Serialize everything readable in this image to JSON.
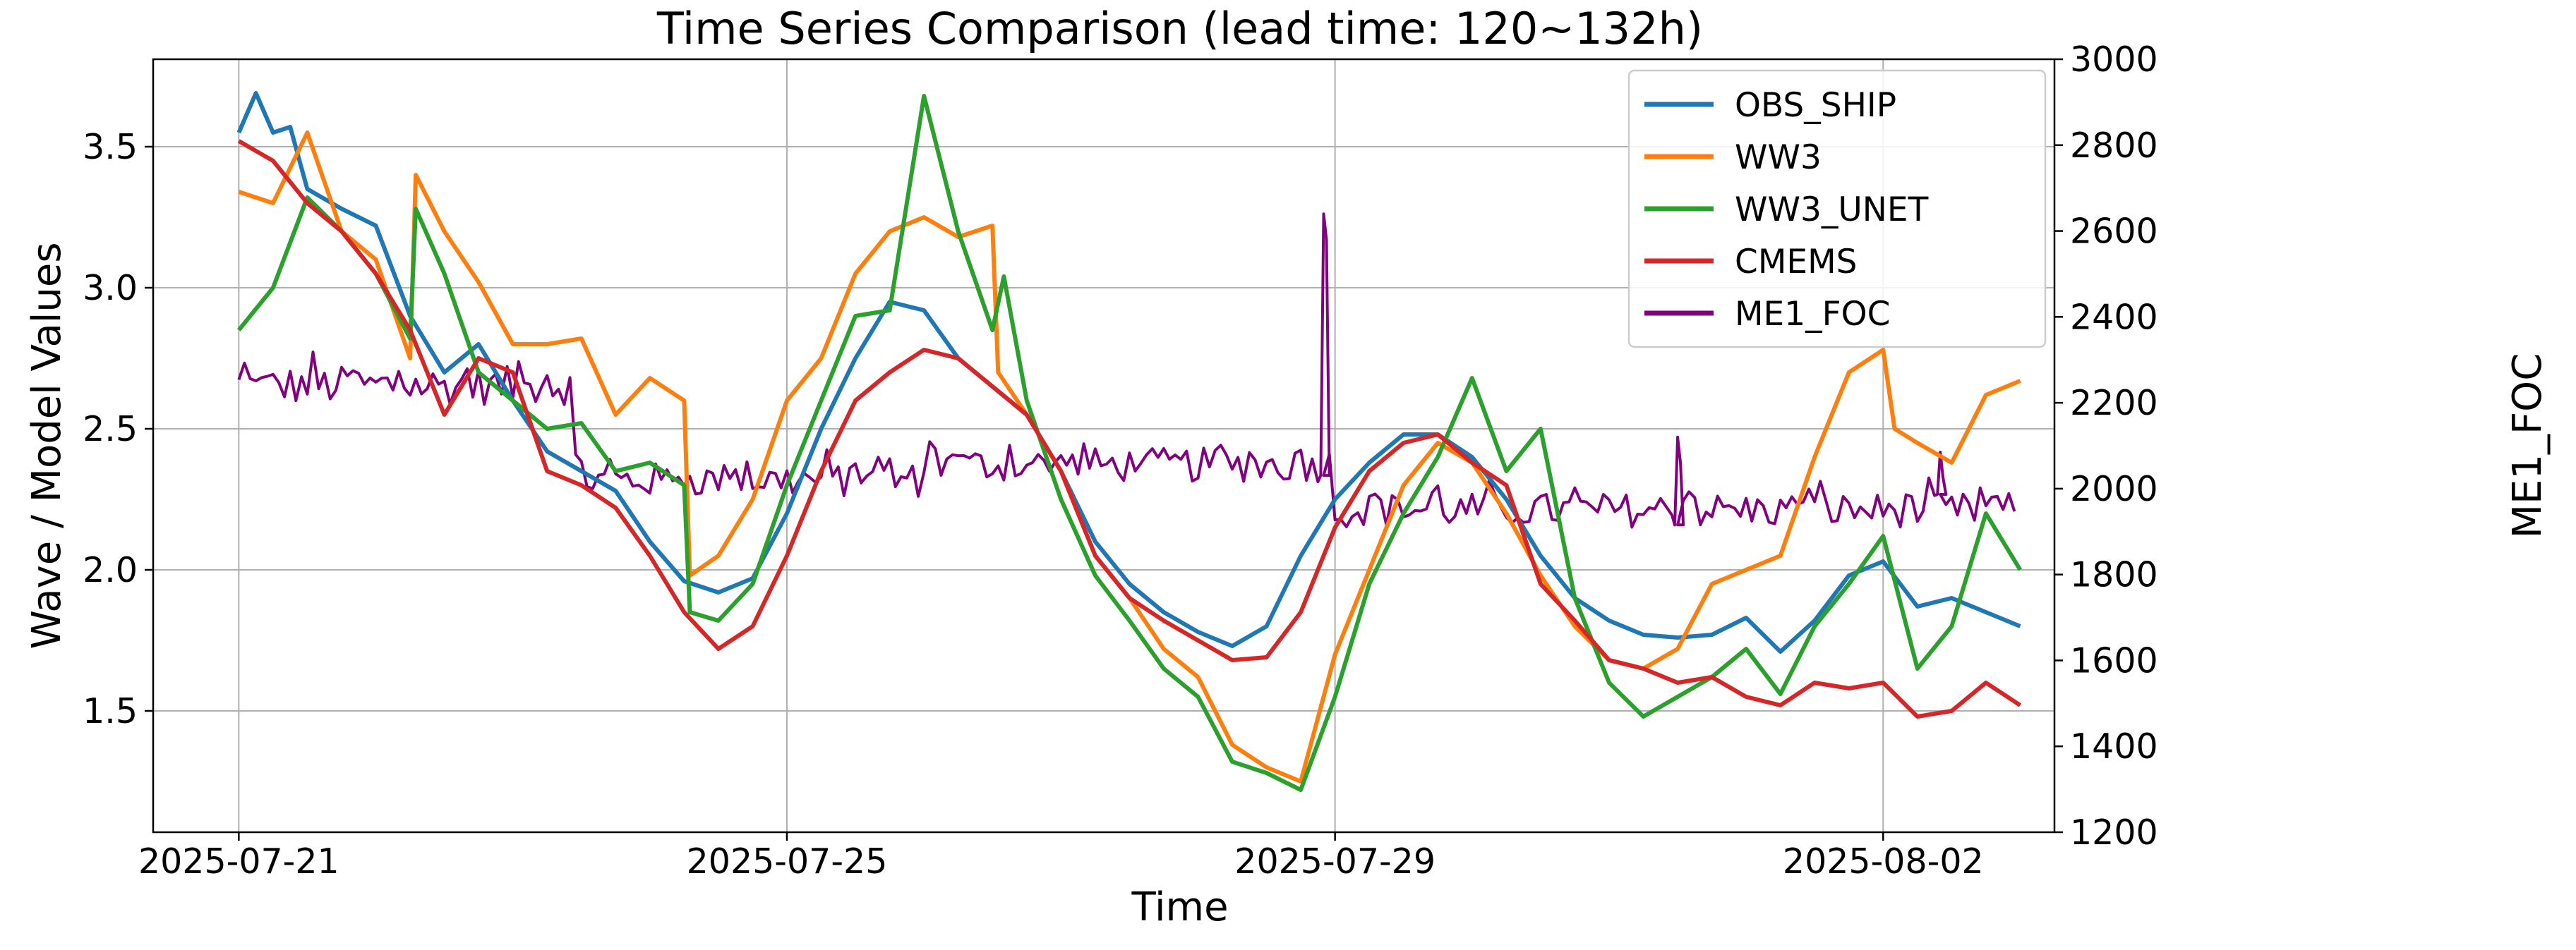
{
  "chart_data": {
    "type": "line",
    "title": "Time Series Comparison (lead time: 120~132h)",
    "xlabel": "Time",
    "ylabel": "Wave / Model Values",
    "ylabel_right": "ME1_FOC",
    "x_tick_labels": [
      "2025-07-21",
      "2025-07-25",
      "2025-07-29",
      "2025-08-02"
    ],
    "y_tick_labels": [
      "1.5",
      "2.0",
      "2.5",
      "3.0",
      "3.5"
    ],
    "y_right_tick_labels": [
      "1200",
      "1400",
      "1600",
      "1800",
      "2000",
      "2200",
      "2400",
      "2600",
      "2800",
      "3000"
    ],
    "x_range": [
      "2025-07-20T09:00",
      "2025-08-03T06:00"
    ],
    "ylim": [
      1.07,
      3.81
    ],
    "ylim_right": [
      1200,
      3000
    ],
    "grid": true,
    "legend_position": "top-right",
    "series": [
      {
        "name": "OBS_SHIP",
        "axis": "left",
        "color": "#1f77b4",
        "points": [
          [
            "2025-07-21T00:00",
            3.55
          ],
          [
            "2025-07-21T03:00",
            3.69
          ],
          [
            "2025-07-21T06:00",
            3.55
          ],
          [
            "2025-07-21T09:00",
            3.57
          ],
          [
            "2025-07-21T12:00",
            3.35
          ],
          [
            "2025-07-21T18:00",
            3.28
          ],
          [
            "2025-07-22T00:00",
            3.22
          ],
          [
            "2025-07-22T06:00",
            2.9
          ],
          [
            "2025-07-22T12:00",
            2.7
          ],
          [
            "2025-07-22T18:00",
            2.8
          ],
          [
            "2025-07-23T00:00",
            2.6
          ],
          [
            "2025-07-23T06:00",
            2.42
          ],
          [
            "2025-07-23T12:00",
            2.35
          ],
          [
            "2025-07-23T18:00",
            2.28
          ],
          [
            "2025-07-24T00:00",
            2.1
          ],
          [
            "2025-07-24T06:00",
            1.96
          ],
          [
            "2025-07-24T12:00",
            1.92
          ],
          [
            "2025-07-24T18:00",
            1.97
          ],
          [
            "2025-07-25T00:00",
            2.2
          ],
          [
            "2025-07-25T06:00",
            2.5
          ],
          [
            "2025-07-25T12:00",
            2.75
          ],
          [
            "2025-07-25T18:00",
            2.95
          ],
          [
            "2025-07-26T00:00",
            2.92
          ],
          [
            "2025-07-26T06:00",
            2.75
          ],
          [
            "2025-07-26T12:00",
            2.65
          ],
          [
            "2025-07-26T18:00",
            2.55
          ],
          [
            "2025-07-27T00:00",
            2.35
          ],
          [
            "2025-07-27T06:00",
            2.1
          ],
          [
            "2025-07-27T12:00",
            1.95
          ],
          [
            "2025-07-27T18:00",
            1.85
          ],
          [
            "2025-07-28T00:00",
            1.78
          ],
          [
            "2025-07-28T06:00",
            1.73
          ],
          [
            "2025-07-28T12:00",
            1.8
          ],
          [
            "2025-07-28T18:00",
            2.05
          ],
          [
            "2025-07-29T00:00",
            2.25
          ],
          [
            "2025-07-29T06:00",
            2.38
          ],
          [
            "2025-07-29T12:00",
            2.48
          ],
          [
            "2025-07-29T18:00",
            2.48
          ],
          [
            "2025-07-30T00:00",
            2.4
          ],
          [
            "2025-07-30T06:00",
            2.25
          ],
          [
            "2025-07-30T12:00",
            2.05
          ],
          [
            "2025-07-30T18:00",
            1.9
          ],
          [
            "2025-07-31T00:00",
            1.82
          ],
          [
            "2025-07-31T06:00",
            1.77
          ],
          [
            "2025-07-31T12:00",
            1.76
          ],
          [
            "2025-07-31T18:00",
            1.77
          ],
          [
            "2025-08-01T00:00",
            1.83
          ],
          [
            "2025-08-01T06:00",
            1.71
          ],
          [
            "2025-08-01T12:00",
            1.82
          ],
          [
            "2025-08-01T18:00",
            1.98
          ],
          [
            "2025-08-02T00:00",
            2.03
          ],
          [
            "2025-08-02T06:00",
            1.87
          ],
          [
            "2025-08-02T12:00",
            1.9
          ],
          [
            "2025-08-02T18:00",
            1.85
          ],
          [
            "2025-08-03T00:00",
            1.8
          ]
        ]
      },
      {
        "name": "WW3",
        "axis": "left",
        "color": "#ff7f0e",
        "points": [
          [
            "2025-07-21T00:00",
            3.34
          ],
          [
            "2025-07-21T06:00",
            3.3
          ],
          [
            "2025-07-21T12:00",
            3.55
          ],
          [
            "2025-07-21T18:00",
            3.2
          ],
          [
            "2025-07-22T00:00",
            3.1
          ],
          [
            "2025-07-22T06:00",
            2.75
          ],
          [
            "2025-07-22T07:00",
            3.4
          ],
          [
            "2025-07-22T12:00",
            3.2
          ],
          [
            "2025-07-22T18:00",
            3.02
          ],
          [
            "2025-07-23T00:00",
            2.8
          ],
          [
            "2025-07-23T06:00",
            2.8
          ],
          [
            "2025-07-23T12:00",
            2.82
          ],
          [
            "2025-07-23T18:00",
            2.55
          ],
          [
            "2025-07-24T00:00",
            2.68
          ],
          [
            "2025-07-24T06:00",
            2.6
          ],
          [
            "2025-07-24T07:00",
            1.98
          ],
          [
            "2025-07-24T12:00",
            2.05
          ],
          [
            "2025-07-24T18:00",
            2.25
          ],
          [
            "2025-07-25T00:00",
            2.6
          ],
          [
            "2025-07-25T06:00",
            2.75
          ],
          [
            "2025-07-25T12:00",
            3.05
          ],
          [
            "2025-07-25T18:00",
            3.2
          ],
          [
            "2025-07-26T00:00",
            3.25
          ],
          [
            "2025-07-26T06:00",
            3.18
          ],
          [
            "2025-07-26T12:00",
            3.22
          ],
          [
            "2025-07-26T13:00",
            2.7
          ],
          [
            "2025-07-26T18:00",
            2.55
          ],
          [
            "2025-07-27T00:00",
            2.35
          ],
          [
            "2025-07-27T06:00",
            2.05
          ],
          [
            "2025-07-27T12:00",
            1.9
          ],
          [
            "2025-07-27T18:00",
            1.72
          ],
          [
            "2025-07-28T00:00",
            1.62
          ],
          [
            "2025-07-28T06:00",
            1.38
          ],
          [
            "2025-07-28T12:00",
            1.3
          ],
          [
            "2025-07-28T18:00",
            1.25
          ],
          [
            "2025-07-29T00:00",
            1.7
          ],
          [
            "2025-07-29T06:00",
            2.0
          ],
          [
            "2025-07-29T12:00",
            2.3
          ],
          [
            "2025-07-29T18:00",
            2.45
          ],
          [
            "2025-07-30T00:00",
            2.38
          ],
          [
            "2025-07-30T06:00",
            2.2
          ],
          [
            "2025-07-30T12:00",
            1.98
          ],
          [
            "2025-07-30T18:00",
            1.8
          ],
          [
            "2025-07-31T00:00",
            1.68
          ],
          [
            "2025-07-31T06:00",
            1.65
          ],
          [
            "2025-07-31T12:00",
            1.72
          ],
          [
            "2025-07-31T18:00",
            1.95
          ],
          [
            "2025-08-01T00:00",
            2.0
          ],
          [
            "2025-08-01T06:00",
            2.05
          ],
          [
            "2025-08-01T12:00",
            2.4
          ],
          [
            "2025-08-01T18:00",
            2.7
          ],
          [
            "2025-08-02T00:00",
            2.78
          ],
          [
            "2025-08-02T02:00",
            2.5
          ],
          [
            "2025-08-02T06:00",
            2.45
          ],
          [
            "2025-08-02T12:00",
            2.38
          ],
          [
            "2025-08-02T18:00",
            2.62
          ],
          [
            "2025-08-03T00:00",
            2.67
          ]
        ]
      },
      {
        "name": "WW3_UNET",
        "axis": "left",
        "color": "#2ca02c",
        "points": [
          [
            "2025-07-21T00:00",
            2.85
          ],
          [
            "2025-07-21T06:00",
            3.0
          ],
          [
            "2025-07-21T12:00",
            3.32
          ],
          [
            "2025-07-21T18:00",
            3.2
          ],
          [
            "2025-07-22T00:00",
            3.05
          ],
          [
            "2025-07-22T06:00",
            2.82
          ],
          [
            "2025-07-22T07:00",
            3.28
          ],
          [
            "2025-07-22T12:00",
            3.05
          ],
          [
            "2025-07-22T18:00",
            2.7
          ],
          [
            "2025-07-23T00:00",
            2.6
          ],
          [
            "2025-07-23T06:00",
            2.5
          ],
          [
            "2025-07-23T12:00",
            2.52
          ],
          [
            "2025-07-23T18:00",
            2.35
          ],
          [
            "2025-07-24T00:00",
            2.38
          ],
          [
            "2025-07-24T06:00",
            2.3
          ],
          [
            "2025-07-24T07:00",
            1.85
          ],
          [
            "2025-07-24T12:00",
            1.82
          ],
          [
            "2025-07-24T18:00",
            1.95
          ],
          [
            "2025-07-25T00:00",
            2.3
          ],
          [
            "2025-07-25T06:00",
            2.6
          ],
          [
            "2025-07-25T12:00",
            2.9
          ],
          [
            "2025-07-25T18:00",
            2.92
          ],
          [
            "2025-07-26T00:00",
            3.68
          ],
          [
            "2025-07-26T06:00",
            3.2
          ],
          [
            "2025-07-26T12:00",
            2.85
          ],
          [
            "2025-07-26T14:00",
            3.04
          ],
          [
            "2025-07-26T18:00",
            2.6
          ],
          [
            "2025-07-27T00:00",
            2.25
          ],
          [
            "2025-07-27T06:00",
            1.98
          ],
          [
            "2025-07-27T12:00",
            1.82
          ],
          [
            "2025-07-27T18:00",
            1.65
          ],
          [
            "2025-07-28T00:00",
            1.55
          ],
          [
            "2025-07-28T06:00",
            1.32
          ],
          [
            "2025-07-28T12:00",
            1.28
          ],
          [
            "2025-07-28T18:00",
            1.22
          ],
          [
            "2025-07-29T00:00",
            1.55
          ],
          [
            "2025-07-29T06:00",
            1.95
          ],
          [
            "2025-07-29T12:00",
            2.2
          ],
          [
            "2025-07-29T18:00",
            2.4
          ],
          [
            "2025-07-30T00:00",
            2.68
          ],
          [
            "2025-07-30T06:00",
            2.35
          ],
          [
            "2025-07-30T12:00",
            2.5
          ],
          [
            "2025-07-30T18:00",
            1.9
          ],
          [
            "2025-07-31T00:00",
            1.6
          ],
          [
            "2025-07-31T06:00",
            1.48
          ],
          [
            "2025-07-31T12:00",
            1.55
          ],
          [
            "2025-07-31T18:00",
            1.62
          ],
          [
            "2025-08-01T00:00",
            1.72
          ],
          [
            "2025-08-01T06:00",
            1.56
          ],
          [
            "2025-08-01T12:00",
            1.8
          ],
          [
            "2025-08-01T18:00",
            1.95
          ],
          [
            "2025-08-02T00:00",
            2.12
          ],
          [
            "2025-08-02T06:00",
            1.65
          ],
          [
            "2025-08-02T12:00",
            1.8
          ],
          [
            "2025-08-02T18:00",
            2.2
          ],
          [
            "2025-08-03T00:00",
            2.0
          ]
        ]
      },
      {
        "name": "CMEMS",
        "axis": "left",
        "color": "#d62728",
        "points": [
          [
            "2025-07-21T00:00",
            3.52
          ],
          [
            "2025-07-21T06:00",
            3.45
          ],
          [
            "2025-07-21T12:00",
            3.3
          ],
          [
            "2025-07-21T18:00",
            3.2
          ],
          [
            "2025-07-22T00:00",
            3.05
          ],
          [
            "2025-07-22T06:00",
            2.85
          ],
          [
            "2025-07-22T12:00",
            2.55
          ],
          [
            "2025-07-22T18:00",
            2.75
          ],
          [
            "2025-07-23T00:00",
            2.7
          ],
          [
            "2025-07-23T06:00",
            2.35
          ],
          [
            "2025-07-23T12:00",
            2.3
          ],
          [
            "2025-07-23T18:00",
            2.22
          ],
          [
            "2025-07-24T00:00",
            2.05
          ],
          [
            "2025-07-24T06:00",
            1.85
          ],
          [
            "2025-07-24T12:00",
            1.72
          ],
          [
            "2025-07-24T18:00",
            1.8
          ],
          [
            "2025-07-25T00:00",
            2.05
          ],
          [
            "2025-07-25T06:00",
            2.35
          ],
          [
            "2025-07-25T12:00",
            2.6
          ],
          [
            "2025-07-25T18:00",
            2.7
          ],
          [
            "2025-07-26T00:00",
            2.78
          ],
          [
            "2025-07-26T06:00",
            2.75
          ],
          [
            "2025-07-26T12:00",
            2.65
          ],
          [
            "2025-07-26T18:00",
            2.55
          ],
          [
            "2025-07-27T00:00",
            2.35
          ],
          [
            "2025-07-27T06:00",
            2.05
          ],
          [
            "2025-07-27T12:00",
            1.9
          ],
          [
            "2025-07-27T18:00",
            1.82
          ],
          [
            "2025-07-28T00:00",
            1.75
          ],
          [
            "2025-07-28T06:00",
            1.68
          ],
          [
            "2025-07-28T12:00",
            1.69
          ],
          [
            "2025-07-28T18:00",
            1.85
          ],
          [
            "2025-07-29T00:00",
            2.15
          ],
          [
            "2025-07-29T06:00",
            2.35
          ],
          [
            "2025-07-29T12:00",
            2.45
          ],
          [
            "2025-07-29T18:00",
            2.48
          ],
          [
            "2025-07-30T00:00",
            2.38
          ],
          [
            "2025-07-30T06:00",
            2.3
          ],
          [
            "2025-07-30T12:00",
            1.95
          ],
          [
            "2025-07-30T18:00",
            1.82
          ],
          [
            "2025-07-31T00:00",
            1.68
          ],
          [
            "2025-07-31T06:00",
            1.65
          ],
          [
            "2025-07-31T12:00",
            1.6
          ],
          [
            "2025-07-31T18:00",
            1.62
          ],
          [
            "2025-08-01T00:00",
            1.55
          ],
          [
            "2025-08-01T06:00",
            1.52
          ],
          [
            "2025-08-01T12:00",
            1.6
          ],
          [
            "2025-08-01T18:00",
            1.58
          ],
          [
            "2025-08-02T00:00",
            1.6
          ],
          [
            "2025-08-02T06:00",
            1.48
          ],
          [
            "2025-08-02T12:00",
            1.5
          ],
          [
            "2025-08-02T18:00",
            1.6
          ],
          [
            "2025-08-03T00:00",
            1.52
          ]
        ]
      },
      {
        "name": "ME1_FOC",
        "axis": "right",
        "color": "#800080",
        "segments": [
          {
            "start": "2025-07-21T00:00",
            "end": "2025-07-23T11:00",
            "level": 2240,
            "amplitude": 45
          },
          {
            "start": "2025-07-23T11:00",
            "end": "2025-07-26T00:00",
            "level": 2020,
            "amplitude": 40
          },
          {
            "start": "2025-07-26T00:00",
            "end": "2025-07-28T18:00",
            "level": 2055,
            "amplitude": 40
          },
          {
            "start": "2025-07-28T18:00",
            "end": "2025-07-29T00:00",
            "level": 2055,
            "amplitude": 40
          },
          {
            "start": "2025-07-29T00:00",
            "end": "2025-08-03T00:00",
            "level": 1950,
            "amplitude": 40
          }
        ],
        "spikes": [
          {
            "time": "2025-07-28T22:00",
            "value": 2640
          },
          {
            "time": "2025-07-31T12:00",
            "value": 2120
          },
          {
            "time": "2025-08-02T10:00",
            "value": 2085
          }
        ]
      }
    ]
  }
}
